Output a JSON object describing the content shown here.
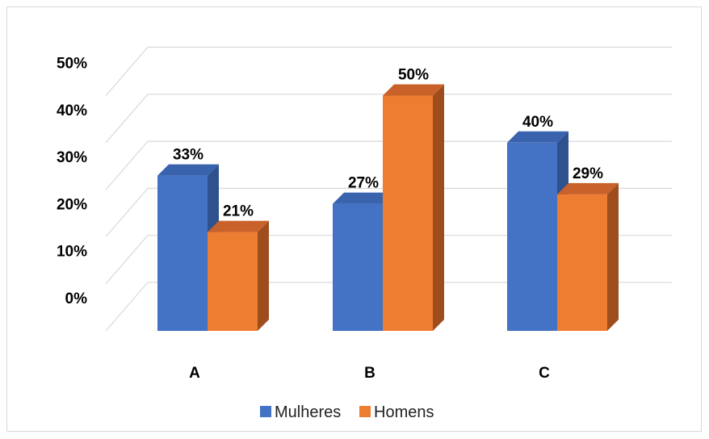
{
  "chart_data": {
    "type": "bar",
    "style": "3d-clustered-column",
    "categories": [
      "A",
      "B",
      "C"
    ],
    "series": [
      {
        "name": "Mulheres",
        "values": [
          33,
          27,
          40
        ],
        "color": "#4472C4",
        "side_color": "#2F528F",
        "top_color": "#3A63AD"
      },
      {
        "name": "Homens",
        "values": [
          21,
          50,
          29
        ],
        "color": "#ED7D31",
        "side_color": "#9E4E1C",
        "top_color": "#C8622A"
      }
    ],
    "data_labels": [
      [
        "33%",
        "27%",
        "40%"
      ],
      [
        "21%",
        "50%",
        "29%"
      ]
    ],
    "yticks": [
      0,
      10,
      20,
      30,
      40,
      50
    ],
    "ytick_labels": [
      "0%",
      "10%",
      "20%",
      "30%",
      "40%",
      "50%"
    ],
    "ylim": [
      0,
      55
    ],
    "grid": true,
    "legend_position": "bottom",
    "title": "",
    "xlabel": "",
    "ylabel": ""
  }
}
